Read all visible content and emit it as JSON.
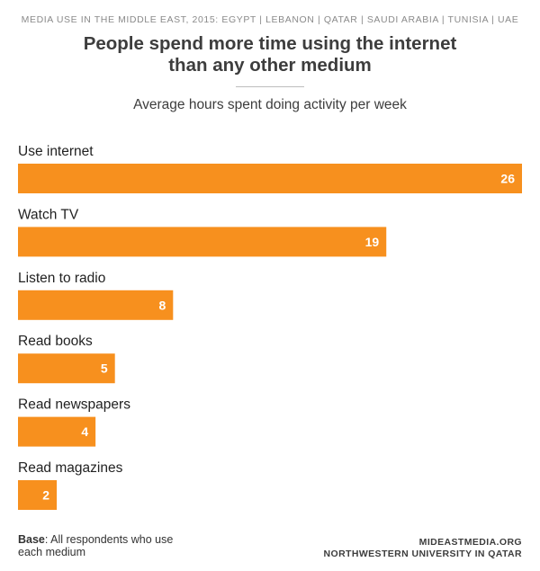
{
  "header": {
    "kicker": "MEDIA USE IN THE MIDDLE EAST, 2015: EGYPT | LEBANON | QATAR | SAUDI ARABIA | TUNISIA | UAE",
    "title_line1": "People spend more time using the internet",
    "title_line2": "than any other medium",
    "subtitle": "Average hours spent doing activity per week"
  },
  "chart_data": {
    "type": "bar",
    "orientation": "horizontal",
    "title": "People spend more time using the internet than any other medium",
    "subtitle": "Average hours spent doing activity per week",
    "categories": [
      "Use internet",
      "Watch TV",
      "Listen to radio",
      "Read books",
      "Read newspapers",
      "Read magazines"
    ],
    "values": [
      26,
      19,
      8,
      5,
      4,
      2
    ],
    "xlim": [
      0,
      26
    ],
    "bar_color": "#f7901e",
    "grid": false,
    "data_labels": true
  },
  "footer": {
    "base_label": "Base",
    "base_text": ": All respondents who use each medium",
    "source_line1": "MIDEASTMEDIA.ORG",
    "source_line2": "NORTHWESTERN UNIVERSITY IN QATAR"
  }
}
